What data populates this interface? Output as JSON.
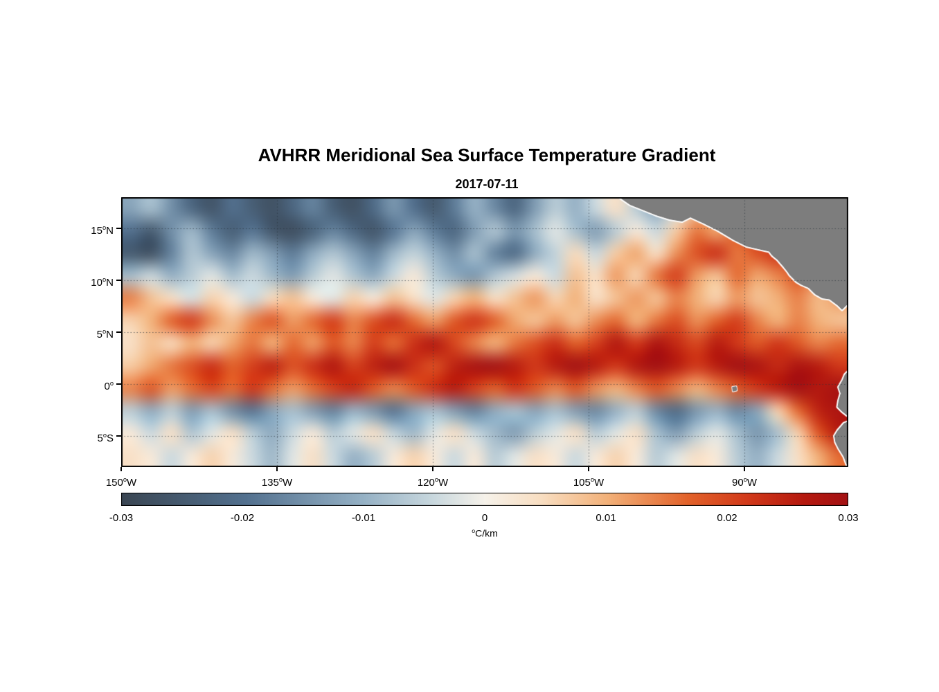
{
  "chart_data": {
    "type": "heatmap",
    "title": "AVHRR Meridional Sea Surface Temperature Gradient",
    "subtitle": "2017-07-11",
    "units_label": "^oC/km",
    "lon_range": [
      -150,
      -80
    ],
    "lat_range": [
      -8,
      18
    ],
    "grid_style": "dotted",
    "xticks": {
      "values": [
        -150,
        -135,
        -120,
        -105,
        -90
      ],
      "labels": [
        "150^oW",
        "135^oW",
        "120^oW",
        "105^oW",
        "90^oW"
      ]
    },
    "yticks": {
      "values": [
        15,
        10,
        5,
        0,
        -5
      ],
      "labels": [
        "15^oN",
        "10^oN",
        "5^oN",
        "0^o",
        "5^oS"
      ]
    },
    "colorbar": {
      "orientation": "horizontal",
      "min": -0.03,
      "max": 0.03,
      "ticks": [
        -0.03,
        -0.02,
        -0.01,
        0,
        0.01,
        0.02,
        0.03
      ],
      "tick_labels": [
        "-0.03",
        "-0.02",
        "-0.01",
        "0",
        "0.01",
        "0.02",
        "0.03"
      ]
    },
    "colormap": {
      "stops": [
        [
          0.0,
          "#3a4653"
        ],
        [
          0.17,
          "#52708e"
        ],
        [
          0.33,
          "#94b0c4"
        ],
        [
          0.43,
          "#c9d8de"
        ],
        [
          0.5,
          "#f6f2ea"
        ],
        [
          0.58,
          "#f8ddc0"
        ],
        [
          0.67,
          "#f2b078"
        ],
        [
          0.78,
          "#e2622a"
        ],
        [
          0.86,
          "#d23a1a"
        ],
        [
          0.94,
          "#b5190f"
        ],
        [
          1.0,
          "#a31113"
        ]
      ]
    },
    "grid_values": {
      "rows": 12,
      "cols": 36,
      "row_lats": [
        16.9,
        14.8,
        12.6,
        10.4,
        8.3,
        6.1,
        3.9,
        1.8,
        -0.4,
        -2.6,
        -4.8,
        -6.9
      ],
      "units": "degC/km",
      "values": [
        [
          -0.012,
          -0.008,
          -0.015,
          -0.022,
          -0.026,
          -0.02,
          -0.024,
          -0.027,
          -0.022,
          -0.017,
          -0.024,
          -0.027,
          -0.021,
          -0.014,
          -0.02,
          -0.025,
          -0.018,
          -0.01,
          -0.016,
          -0.022,
          -0.013,
          -0.006,
          -0.01,
          -0.004,
          0.004,
          -0.006,
          -0.012,
          -0.003,
          0.008,
          0.013,
          0.006,
          0.01,
          0.005,
          0.008,
          0.004,
          0.006
        ],
        [
          -0.02,
          -0.025,
          -0.015,
          -0.009,
          -0.018,
          -0.024,
          -0.019,
          -0.026,
          -0.028,
          -0.023,
          -0.017,
          -0.022,
          -0.026,
          -0.019,
          -0.012,
          -0.018,
          -0.022,
          -0.013,
          -0.007,
          -0.014,
          -0.008,
          -0.002,
          -0.008,
          -0.013,
          -0.006,
          0.002,
          -0.004,
          0.007,
          0.015,
          0.011,
          0.017,
          0.021,
          0.013,
          0.016,
          0.01,
          0.008
        ],
        [
          -0.025,
          -0.027,
          -0.017,
          -0.007,
          -0.012,
          -0.016,
          -0.009,
          -0.013,
          -0.018,
          -0.011,
          -0.007,
          -0.012,
          -0.017,
          -0.009,
          -0.005,
          -0.01,
          -0.015,
          -0.008,
          -0.017,
          -0.021,
          -0.011,
          -0.005,
          0.005,
          -0.004,
          0.007,
          0.011,
          0.004,
          0.013,
          0.019,
          0.023,
          0.015,
          0.019,
          0.022,
          0.016,
          0.012,
          0.014
        ],
        [
          -0.008,
          -0.004,
          -0.01,
          -0.006,
          -0.002,
          -0.008,
          -0.004,
          -0.009,
          -0.013,
          -0.006,
          -0.002,
          -0.007,
          -0.011,
          -0.004,
          0.002,
          -0.006,
          -0.011,
          -0.014,
          -0.007,
          -0.003,
          0.002,
          -0.004,
          0.008,
          0.004,
          0.012,
          0.006,
          0.015,
          0.021,
          0.012,
          0.008,
          0.016,
          0.011,
          0.014,
          0.018,
          0.012,
          0.01
        ],
        [
          0.014,
          0.008,
          0.004,
          -0.003,
          0.006,
          0.002,
          -0.004,
          0.005,
          0.008,
          0.002,
          -0.002,
          0.006,
          0.002,
          0.008,
          0.004,
          -0.002,
          0.006,
          0.01,
          0.004,
          0.008,
          0.012,
          0.006,
          0.01,
          0.004,
          0.008,
          0.012,
          0.008,
          0.014,
          0.01,
          0.006,
          0.012,
          0.008,
          0.01,
          0.014,
          0.009,
          0.012
        ],
        [
          0.006,
          0.01,
          0.017,
          0.021,
          0.013,
          0.008,
          0.014,
          0.018,
          0.012,
          0.016,
          0.021,
          0.014,
          0.019,
          0.023,
          0.016,
          0.012,
          0.018,
          0.022,
          0.017,
          0.011,
          0.008,
          0.012,
          0.008,
          0.013,
          0.016,
          0.01,
          0.015,
          0.019,
          0.013,
          0.017,
          0.021,
          0.014,
          0.01,
          0.014,
          0.01,
          0.008
        ],
        [
          0.004,
          0.008,
          0.005,
          0.01,
          0.006,
          0.011,
          0.015,
          0.01,
          0.016,
          0.012,
          0.018,
          0.014,
          0.021,
          0.016,
          0.023,
          0.027,
          0.02,
          0.014,
          0.01,
          0.015,
          0.019,
          0.023,
          0.017,
          0.021,
          0.027,
          0.022,
          0.028,
          0.024,
          0.02,
          0.026,
          0.022,
          0.018,
          0.022,
          0.018,
          0.014,
          0.016
        ],
        [
          0.007,
          0.011,
          0.015,
          0.019,
          0.023,
          0.017,
          0.021,
          0.025,
          0.019,
          0.023,
          0.027,
          0.021,
          0.025,
          0.029,
          0.023,
          0.019,
          0.025,
          0.029,
          0.03,
          0.026,
          0.022,
          0.026,
          0.03,
          0.026,
          0.022,
          0.027,
          0.03,
          0.026,
          0.022,
          0.026,
          0.03,
          0.028,
          0.024,
          0.028,
          0.026,
          0.022
        ],
        [
          0.014,
          0.018,
          0.012,
          0.016,
          0.02,
          0.016,
          0.022,
          0.016,
          0.012,
          0.016,
          0.021,
          0.024,
          0.018,
          0.014,
          0.018,
          0.023,
          0.026,
          0.021,
          0.017,
          0.022,
          0.018,
          0.014,
          0.018,
          0.013,
          0.01,
          0.014,
          0.018,
          0.014,
          0.01,
          0.014,
          0.018,
          0.022,
          0.026,
          0.03,
          0.027,
          0.029
        ],
        [
          -0.006,
          -0.011,
          -0.006,
          -0.013,
          -0.008,
          -0.015,
          -0.019,
          -0.012,
          -0.008,
          -0.013,
          -0.017,
          -0.01,
          -0.014,
          -0.019,
          -0.012,
          -0.008,
          -0.013,
          -0.017,
          -0.011,
          -0.008,
          -0.012,
          -0.008,
          -0.013,
          -0.016,
          -0.01,
          -0.006,
          -0.016,
          -0.021,
          -0.014,
          -0.01,
          -0.016,
          -0.012,
          0.006,
          0.016,
          0.025,
          0.028
        ],
        [
          0.002,
          -0.004,
          0.004,
          -0.007,
          -0.002,
          0.004,
          -0.006,
          -0.011,
          -0.004,
          0.002,
          -0.006,
          -0.002,
          0.004,
          -0.005,
          -0.009,
          -0.002,
          0.004,
          -0.004,
          -0.009,
          -0.013,
          -0.006,
          -0.002,
          0.004,
          -0.006,
          -0.002,
          0.004,
          -0.008,
          -0.013,
          -0.006,
          -0.002,
          -0.008,
          -0.014,
          -0.008,
          0.006,
          0.018,
          0.026
        ],
        [
          0.004,
          0.002,
          -0.004,
          0.002,
          0.006,
          0.002,
          -0.004,
          -0.009,
          -0.002,
          0.004,
          -0.004,
          -0.01,
          -0.006,
          0.002,
          0.006,
          0.002,
          -0.004,
          0.002,
          -0.006,
          -0.002,
          0.004,
          0.002,
          -0.004,
          0.002,
          0.006,
          0.002,
          -0.006,
          -0.002,
          0.004,
          0.002,
          -0.006,
          -0.01,
          -0.004,
          0.004,
          0.01,
          0.016
        ]
      ]
    },
    "land": {
      "fill": "#7d7d7d",
      "halo": "#ffffff",
      "polygons": {
        "central_america": [
          [
            -102.3,
            18.2
          ],
          [
            -101.0,
            17.3
          ],
          [
            -100.0,
            16.9
          ],
          [
            -98.5,
            16.3
          ],
          [
            -97.2,
            15.9
          ],
          [
            -96.0,
            15.7
          ],
          [
            -95.2,
            16.1
          ],
          [
            -93.9,
            15.5
          ],
          [
            -92.5,
            14.8
          ],
          [
            -91.0,
            13.9
          ],
          [
            -89.8,
            13.3
          ],
          [
            -88.5,
            13.0
          ],
          [
            -87.6,
            12.8
          ],
          [
            -87.3,
            12.4
          ],
          [
            -86.8,
            12.0
          ],
          [
            -86.2,
            11.3
          ],
          [
            -85.8,
            10.8
          ],
          [
            -85.6,
            10.5
          ],
          [
            -85.0,
            9.9
          ],
          [
            -84.5,
            9.6
          ],
          [
            -83.8,
            9.3
          ],
          [
            -83.2,
            8.7
          ],
          [
            -82.5,
            8.3
          ],
          [
            -81.8,
            8.2
          ],
          [
            -81.0,
            7.6
          ],
          [
            -80.6,
            7.2
          ],
          [
            -80.2,
            7.6
          ],
          [
            -79.8,
            8.0
          ],
          [
            -79.8,
            18.2
          ]
        ],
        "south_america": [
          [
            -79.8,
            1.4
          ],
          [
            -80.3,
            0.9
          ],
          [
            -80.5,
            0.4
          ],
          [
            -80.9,
            -0.3
          ],
          [
            -80.7,
            -0.9
          ],
          [
            -80.9,
            -1.6
          ],
          [
            -81.0,
            -2.2
          ],
          [
            -80.6,
            -2.6
          ],
          [
            -80.1,
            -3.0
          ],
          [
            -79.9,
            -3.1
          ],
          [
            -79.9,
            -3.6
          ],
          [
            -80.4,
            -3.8
          ],
          [
            -81.0,
            -4.5
          ],
          [
            -81.3,
            -5.0
          ],
          [
            -81.2,
            -5.6
          ],
          [
            -80.9,
            -6.2
          ],
          [
            -80.4,
            -7.0
          ],
          [
            -80.1,
            -7.8
          ],
          [
            -79.8,
            -8.2
          ]
        ],
        "galapagos": [
          [
            -91.15,
            -0.3
          ],
          [
            -90.8,
            -0.25
          ],
          [
            -90.75,
            -0.6
          ],
          [
            -91.1,
            -0.68
          ]
        ]
      }
    }
  }
}
